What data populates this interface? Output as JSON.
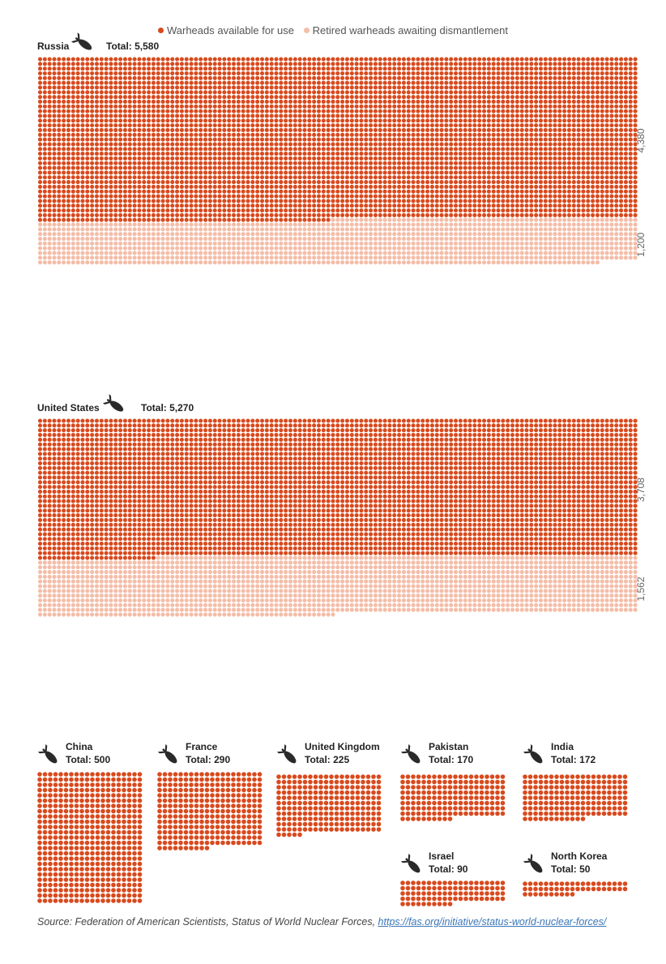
{
  "legend": {
    "available_label": "Warheads available for use",
    "retired_label": "Retired warheads awaiting dismantlement"
  },
  "colors": {
    "available": "#d84a1e",
    "retired": "#f4bda8",
    "text": "#222222",
    "secondary_text": "#666666"
  },
  "chart_data": {
    "type": "waffle",
    "unit_note": "",
    "countries": [
      {
        "name": "Russia",
        "total_label": "Total: 5,580",
        "total": 5580,
        "available": 4380,
        "retired": 1200,
        "available_label": "4,380",
        "retired_label": "1,200",
        "icon": "bomb-icon"
      },
      {
        "name": "United States",
        "total_label": "Total: 5,270",
        "total": 5270,
        "available": 3708,
        "retired": 1562,
        "available_label": "3,708",
        "retired_label": "1,562",
        "icon": "bomb-icon"
      },
      {
        "name": "China",
        "total_label": "Total: 500",
        "total": 500,
        "available": 500,
        "retired": 0,
        "icon": "bomb-icon"
      },
      {
        "name": "France",
        "total_label": "Total: 290",
        "total": 290,
        "available": 290,
        "retired": 0,
        "icon": "bomb-icon"
      },
      {
        "name": "United Kingdom",
        "total_label": "Total: 225",
        "total": 225,
        "available": 225,
        "retired": 0,
        "icon": "bomb-icon"
      },
      {
        "name": "Pakistan",
        "total_label": "Total: 170",
        "total": 170,
        "available": 170,
        "retired": 0,
        "icon": "bomb-icon"
      },
      {
        "name": "India",
        "total_label": "Total: 172",
        "total": 172,
        "available": 172,
        "retired": 0,
        "icon": "bomb-icon"
      },
      {
        "name": "Israel",
        "total_label": "Total: 90",
        "total": 90,
        "available": 90,
        "retired": 0,
        "icon": "bomb-icon"
      },
      {
        "name": "North Korea",
        "total_label": "Total: 50",
        "total": 50,
        "available": 50,
        "retired": 0,
        "icon": "bomb-icon"
      }
    ]
  },
  "source": {
    "text": "Source: Federation of American Scientists, Status of World Nuclear Forces, ",
    "link": "https://fas.org/initiative/status-world-nuclear-forces/"
  }
}
